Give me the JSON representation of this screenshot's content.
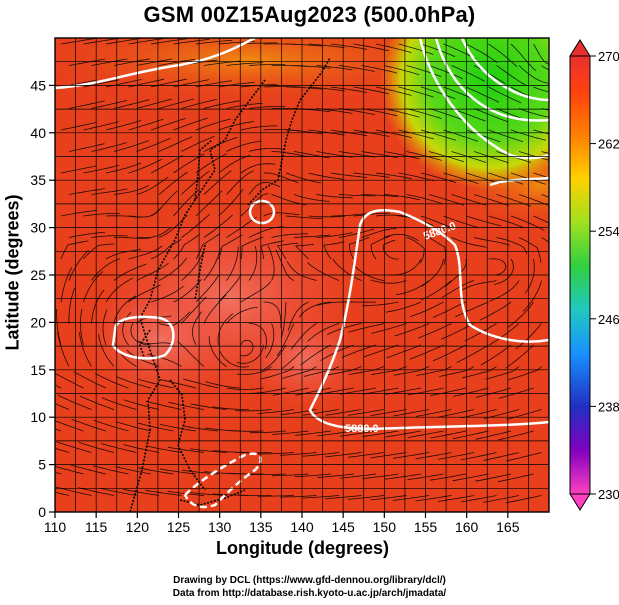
{
  "title": "GSM 00Z15Aug2023 (500.0hPa)",
  "xlabel": "Longitude (degrees)",
  "ylabel": "Latitude  (degrees)",
  "credits": [
    "Drawing by DCL (https://www.gfd-dennou.org/library/dcl/)",
    "Data from http://database.rish.kyoto-u.ac.jp/arch/jmadata/"
  ],
  "chart_data": {
    "type": "heatmap",
    "variable": "500 hPa temperature with wind streamlines and geopotential height contours",
    "xlim": [
      110,
      170
    ],
    "ylim": [
      0,
      50
    ],
    "x_ticks": [
      110,
      115,
      120,
      125,
      130,
      135,
      140,
      145,
      150,
      155,
      160,
      165
    ],
    "y_ticks": [
      0,
      5,
      10,
      15,
      20,
      25,
      30,
      35,
      40,
      45
    ],
    "grid": true,
    "colorbar": {
      "position": "right",
      "ticks": [
        230,
        238,
        246,
        254,
        262,
        270
      ],
      "range": [
        230,
        270
      ],
      "colors": [
        "#ff40c0",
        "#8000c0",
        "#2030c0",
        "#1890ff",
        "#20c8c0",
        "#30d040",
        "#a0e020",
        "#ffd000",
        "#ff8000",
        "#ff4010",
        "#e82020"
      ]
    },
    "contour_labels": [
      "5880.0",
      "5880.0"
    ],
    "colors": {
      "warm": "#e8381a",
      "warmest": "#f06050",
      "cool_green": "#30d020",
      "contour": "#ffffff",
      "coastline": "#000000"
    }
  }
}
